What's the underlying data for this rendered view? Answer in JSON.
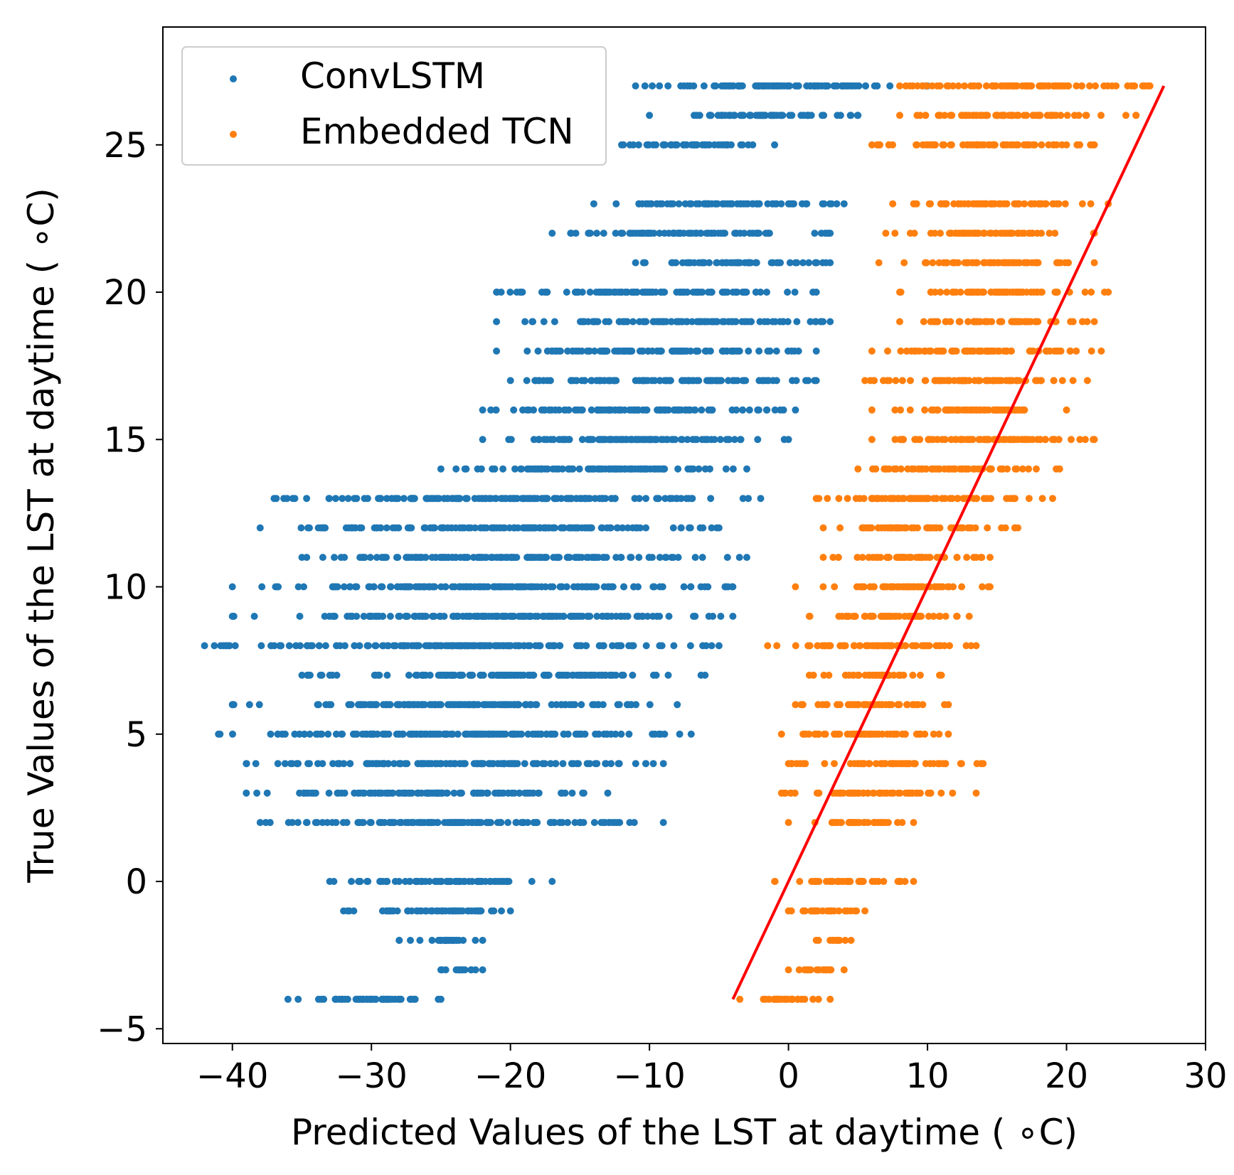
{
  "chart_data": {
    "type": "scatter",
    "xlabel": "Predicted Values of the LST at daytime ( ∘C)",
    "ylabel": "True Values of the LST at daytime ( ∘C)",
    "xlim": [
      -45,
      30
    ],
    "ylim": [
      -5.5,
      29
    ],
    "x_ticks": [
      -40,
      -30,
      -20,
      -10,
      0,
      10,
      20,
      30
    ],
    "y_ticks": [
      -5,
      0,
      5,
      10,
      15,
      20,
      25
    ],
    "x_tick_labels": [
      "−40",
      "−30",
      "−20",
      "−10",
      "0",
      "10",
      "20",
      "30"
    ],
    "y_tick_labels": [
      "−5",
      "0",
      "5",
      "10",
      "15",
      "20",
      "25"
    ],
    "grid": false,
    "legend_position": "top-left",
    "series": [
      {
        "name": "ConvLSTM",
        "color": "#1f77b4",
        "rows": [
          {
            "y": 27,
            "x_min": -11,
            "x_max": 10
          },
          {
            "y": 26,
            "x_min": -10,
            "x_max": 5
          },
          {
            "y": 25,
            "x_min": -12,
            "x_max": -1
          },
          {
            "y": 23,
            "x_min": -14,
            "x_max": 4
          },
          {
            "y": 22,
            "x_min": -17,
            "x_max": 3
          },
          {
            "y": 21,
            "x_min": -11,
            "x_max": 3
          },
          {
            "y": 20,
            "x_min": -21,
            "x_max": 2
          },
          {
            "y": 19,
            "x_min": -21,
            "x_max": 3
          },
          {
            "y": 18,
            "x_min": -21,
            "x_max": 2
          },
          {
            "y": 17,
            "x_min": -20,
            "x_max": 2
          },
          {
            "y": 16,
            "x_min": -22,
            "x_max": 0.5
          },
          {
            "y": 15,
            "x_min": -22,
            "x_max": 0
          },
          {
            "y": 14,
            "x_min": -25,
            "x_max": -3
          },
          {
            "y": 13,
            "x_min": -37,
            "x_max": -2
          },
          {
            "y": 12,
            "x_min": -38,
            "x_max": -5
          },
          {
            "y": 11,
            "x_min": -35,
            "x_max": -3
          },
          {
            "y": 10,
            "x_min": -40,
            "x_max": -4
          },
          {
            "y": 9,
            "x_min": -40,
            "x_max": -4
          },
          {
            "y": 8,
            "x_min": -42,
            "x_max": -5
          },
          {
            "y": 7,
            "x_min": -35,
            "x_max": -6
          },
          {
            "y": 6,
            "x_min": -40,
            "x_max": -8
          },
          {
            "y": 5,
            "x_min": -41,
            "x_max": -7
          },
          {
            "y": 4,
            "x_min": -39,
            "x_max": -9
          },
          {
            "y": 3,
            "x_min": -39,
            "x_max": -13
          },
          {
            "y": 2,
            "x_min": -38,
            "x_max": -9
          },
          {
            "y": 0,
            "x_min": -33,
            "x_max": -17
          },
          {
            "y": -1,
            "x_min": -32,
            "x_max": -20
          },
          {
            "y": -2,
            "x_min": -28,
            "x_max": -22
          },
          {
            "y": -3,
            "x_min": -25,
            "x_max": -22
          },
          {
            "y": -4,
            "x_min": -36,
            "x_max": -25
          }
        ]
      },
      {
        "name": "Embedded TCN",
        "color": "#ff7f0e",
        "rows": [
          {
            "y": 27,
            "x_min": 8,
            "x_max": 26
          },
          {
            "y": 26,
            "x_min": 8,
            "x_max": 25
          },
          {
            "y": 25,
            "x_min": 6,
            "x_max": 22
          },
          {
            "y": 23,
            "x_min": 7.5,
            "x_max": 23
          },
          {
            "y": 22,
            "x_min": 7,
            "x_max": 22
          },
          {
            "y": 21,
            "x_min": 6.5,
            "x_max": 22
          },
          {
            "y": 20,
            "x_min": 8,
            "x_max": 23
          },
          {
            "y": 19,
            "x_min": 8,
            "x_max": 22
          },
          {
            "y": 18,
            "x_min": 6,
            "x_max": 22.5
          },
          {
            "y": 17,
            "x_min": 5.5,
            "x_max": 21.5
          },
          {
            "y": 16,
            "x_min": 6,
            "x_max": 20
          },
          {
            "y": 15,
            "x_min": 6,
            "x_max": 22
          },
          {
            "y": 14,
            "x_min": 5,
            "x_max": 19.5
          },
          {
            "y": 13,
            "x_min": 2,
            "x_max": 19
          },
          {
            "y": 12,
            "x_min": 2.5,
            "x_max": 16.5
          },
          {
            "y": 11,
            "x_min": 2.5,
            "x_max": 14.5
          },
          {
            "y": 10,
            "x_min": 0.5,
            "x_max": 14.5
          },
          {
            "y": 9,
            "x_min": 1.5,
            "x_max": 13
          },
          {
            "y": 8,
            "x_min": -1.5,
            "x_max": 13.5
          },
          {
            "y": 7,
            "x_min": 1.5,
            "x_max": 11
          },
          {
            "y": 6,
            "x_min": 0.5,
            "x_max": 11.5
          },
          {
            "y": 5,
            "x_min": -0.5,
            "x_max": 11.5
          },
          {
            "y": 4,
            "x_min": 0,
            "x_max": 14
          },
          {
            "y": 3,
            "x_min": -0.5,
            "x_max": 13.5
          },
          {
            "y": 2,
            "x_min": 0,
            "x_max": 9
          },
          {
            "y": 0,
            "x_min": -1,
            "x_max": 9
          },
          {
            "y": -1,
            "x_min": 0,
            "x_max": 5.5
          },
          {
            "y": -2,
            "x_min": 2,
            "x_max": 4.5
          },
          {
            "y": -3,
            "x_min": 0,
            "x_max": 4
          },
          {
            "y": -4,
            "x_min": -3.5,
            "x_max": 3
          }
        ]
      }
    ],
    "reference_line": {
      "color": "#ff0000",
      "x": [
        -4,
        27
      ],
      "y": [
        -4,
        27
      ]
    }
  }
}
